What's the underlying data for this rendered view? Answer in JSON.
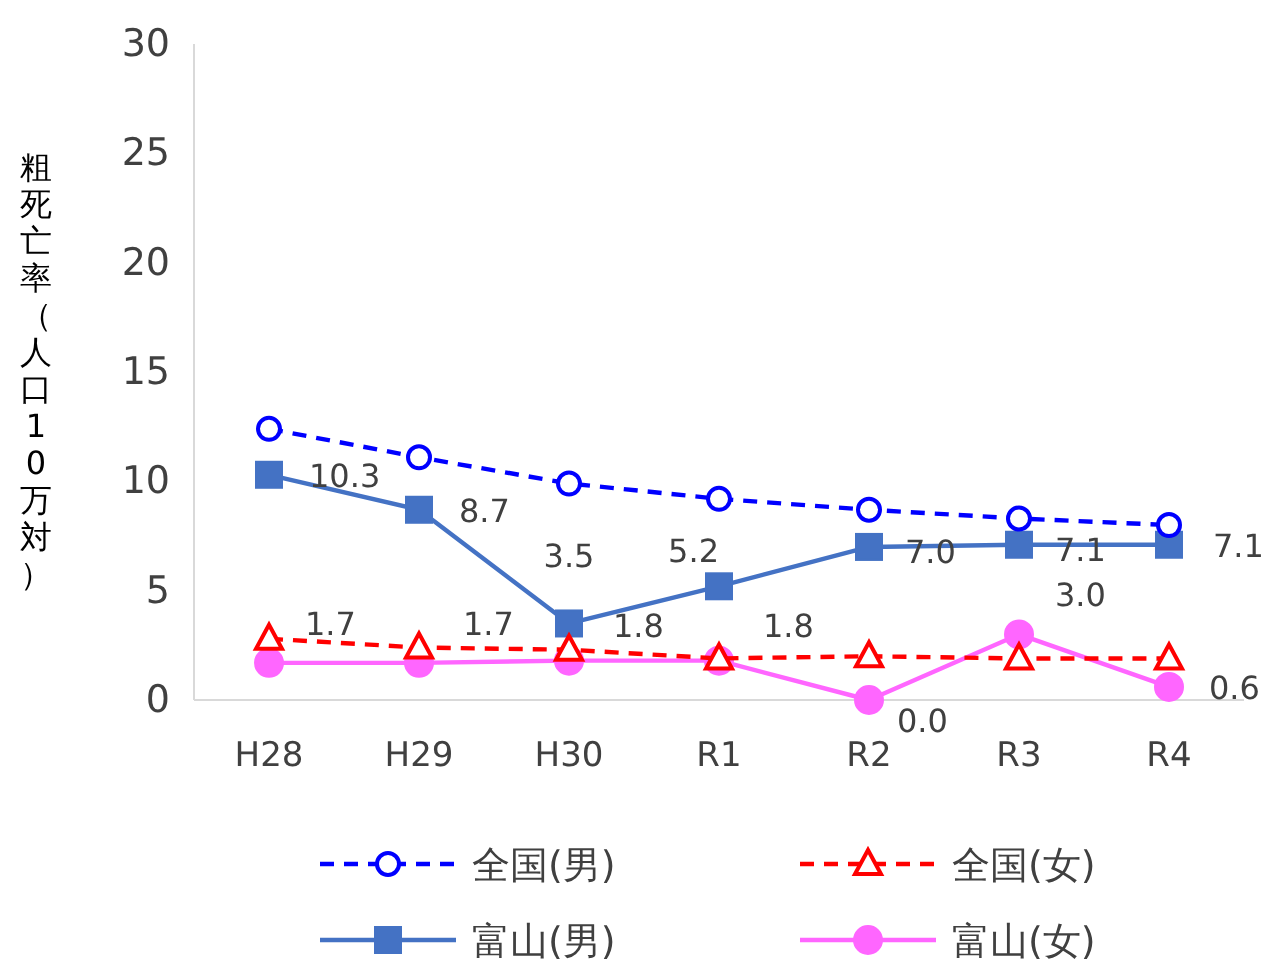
{
  "chart_data": {
    "type": "line",
    "ylabel": "粗死亡率（人口10万対）",
    "categories": [
      "H28",
      "H29",
      "H30",
      "R1",
      "R2",
      "R3",
      "R4"
    ],
    "ylim": [
      0,
      30
    ],
    "yticks": [
      0,
      5,
      10,
      15,
      20,
      25,
      30
    ],
    "legend": "bottom",
    "grid": false,
    "series": [
      {
        "name": "全国(男)",
        "color": "#0000ff",
        "line_style": "dashed",
        "marker": "circle",
        "values": [
          12.4,
          11.1,
          9.9,
          9.2,
          8.7,
          8.3,
          8.0
        ]
      },
      {
        "name": "全国(女)",
        "color": "#ff0000",
        "line_style": "dashed",
        "marker": "triangle",
        "values": [
          2.8,
          2.4,
          2.3,
          1.9,
          2.0,
          1.9,
          1.9
        ]
      },
      {
        "name": "富山(男)",
        "color": "#4472c4",
        "line_style": "solid",
        "marker": "square",
        "values": [
          10.3,
          8.7,
          3.5,
          5.2,
          7.0,
          7.1,
          7.1
        ],
        "value_labels": [
          "10.3",
          "8.7",
          "3.5",
          "5.2",
          "7.0",
          "7.1",
          "7.1"
        ]
      },
      {
        "name": "富山(女)",
        "color": "#ff66ff",
        "line_style": "solid",
        "marker": "circle_filled",
        "values": [
          1.7,
          1.7,
          1.8,
          1.8,
          0.0,
          3.0,
          0.6
        ],
        "value_labels": [
          "1.7",
          "1.7",
          "1.8",
          "1.8",
          "0.0",
          "3.0",
          "0.6"
        ]
      }
    ]
  }
}
